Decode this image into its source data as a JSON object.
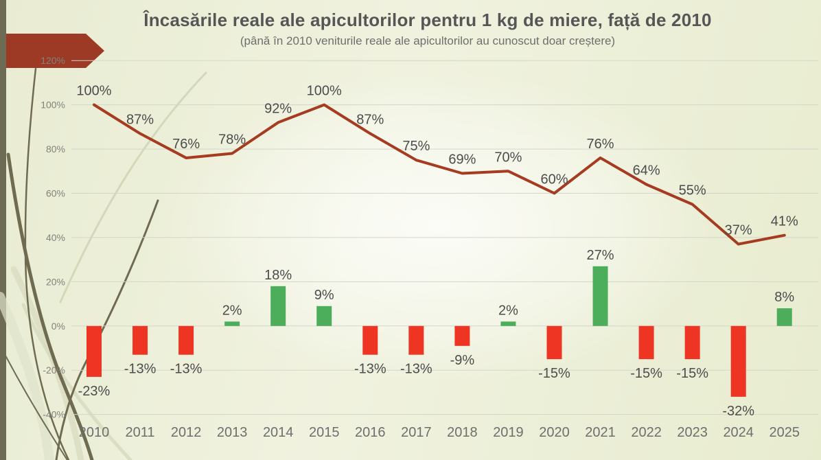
{
  "chart_data": {
    "type": "bar+line combo",
    "title": "Încasările reale ale apicultorilor pentru 1 kg de miere, față de 2010",
    "subtitle": "(până în 2010 veniturile reale ale apicultorilor au cunoscut doar creștere)",
    "categories": [
      "2010",
      "2011",
      "2012",
      "2013",
      "2014",
      "2015",
      "2016",
      "2017",
      "2018",
      "2019",
      "2020",
      "2021",
      "2022",
      "2023",
      "2024",
      "2025"
    ],
    "series": [
      {
        "name": "line-series",
        "type": "line",
        "color": "#A53B20",
        "values": [
          100,
          87,
          76,
          78,
          92,
          100,
          87,
          75,
          69,
          70,
          60,
          76,
          64,
          55,
          37,
          41
        ],
        "label_format": "percent"
      },
      {
        "name": "bar-series",
        "type": "bar",
        "color_positive": "#4CAD5B",
        "color_negative": "#EE3423",
        "values": [
          -23,
          -13,
          -13,
          2,
          18,
          9,
          -13,
          -13,
          -9,
          2,
          -15,
          27,
          -15,
          -15,
          -32,
          8
        ],
        "label_format": "percent"
      }
    ],
    "yaxis": {
      "min": -40,
      "max": 120,
      "ticks": [
        120,
        100,
        80,
        60,
        40,
        20,
        0,
        -20,
        -40
      ],
      "tick_labels": [
        "120%",
        "100%",
        "80%",
        "60%",
        "40%",
        "20%",
        "0%",
        "-20%",
        "-40%"
      ],
      "grid": true
    },
    "legend_position": "none",
    "data_labels_visible": true
  },
  "theme": {
    "background": "#EAEDD3",
    "grid_color": "#D3D5CB",
    "tick_color": "#82827A",
    "data_label_color": "#4C4C4C",
    "year_label_color": "#6E6E6E",
    "arrow_color": "#9C3A25",
    "strip_color": "#6E6B54",
    "grass_dark": "#6F6B51",
    "grass_light": "#D2D5B8"
  }
}
